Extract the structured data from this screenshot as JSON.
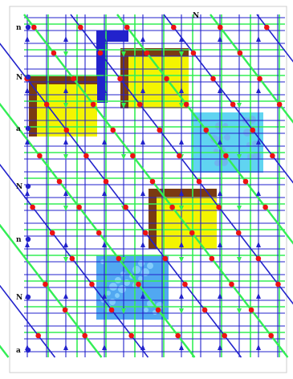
{
  "row_labels": [
    "n",
    "N",
    "a",
    "N",
    "n",
    "N",
    "a"
  ],
  "top_label": "N",
  "colors": {
    "blue": "#2222cc",
    "green": "#33ee55",
    "node": "#ee1111",
    "yellow": "#f4f400",
    "brown": "#7a3a12",
    "cyan": "#44ccee",
    "lightblue": "#3399ee",
    "frame": "#cccccc"
  },
  "regions": [
    {
      "kind": "blue-bar-highlight",
      "color": "blue"
    },
    {
      "kind": "yellow-square-brown-corner",
      "color": "yellow"
    },
    {
      "kind": "yellow-square-brown-corner",
      "color": "yellow"
    },
    {
      "kind": "cyan-textured-square",
      "color": "cyan"
    },
    {
      "kind": "yellow-square-brown-corner",
      "color": "yellow"
    },
    {
      "kind": "lightblue-textured-square",
      "color": "lightblue"
    }
  ]
}
